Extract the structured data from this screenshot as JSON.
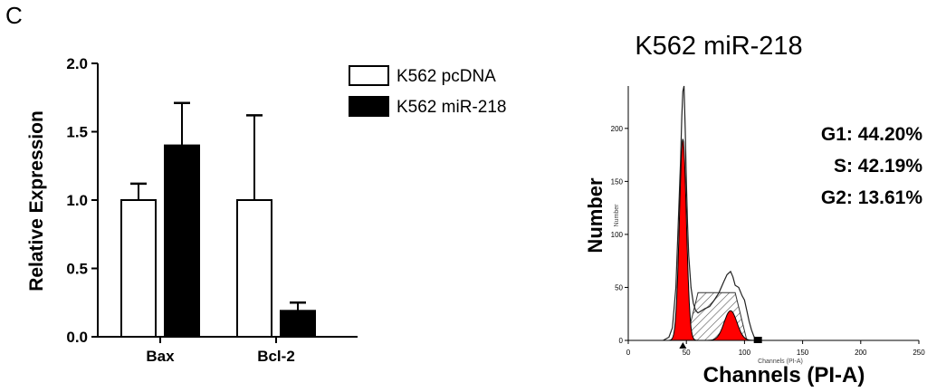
{
  "panel_label": "C",
  "colors": {
    "black": "#000000",
    "white": "#ffffff",
    "red": "#ff0000",
    "hatch": "#555555"
  },
  "chart_data": [
    {
      "type": "bar",
      "title": "",
      "xlabel": "",
      "ylabel": "Relative Expression",
      "ylim": [
        0,
        2.0
      ],
      "yticks": [
        "0.0",
        "0.5",
        "1.0",
        "1.5",
        "2.0"
      ],
      "grid": false,
      "legend_position": "top-right",
      "categories": [
        "Bax",
        "Bcl-2"
      ],
      "series": [
        {
          "name": "K562 pcDNA",
          "fill": "#ffffff",
          "values": [
            1.0,
            1.0
          ],
          "errors": [
            0.12,
            0.62
          ]
        },
        {
          "name": "K562 miR-218",
          "fill": "#000000",
          "values": [
            1.4,
            0.19
          ],
          "errors": [
            0.31,
            0.06
          ]
        }
      ]
    },
    {
      "type": "area",
      "title": "K562 miR-218",
      "xlabel": "Channels (PI-A)",
      "xlabel_small": "Channels (PI-A)",
      "ylabel": "Number",
      "ylabel_small": "Number",
      "xlim": [
        0,
        250
      ],
      "ylim": [
        0,
        240
      ],
      "xticks": [
        "0",
        "50",
        "100",
        "150",
        "200",
        "250"
      ],
      "yticks": [
        "0",
        "50",
        "100",
        "150",
        "200"
      ],
      "annotations": [
        "G1: 44.20%",
        "S: 42.19%",
        "G2: 13.61%"
      ],
      "histogram": {
        "x": [
          30,
          35,
          38,
          41,
          43,
          45,
          46,
          47,
          48,
          49,
          50,
          51,
          52,
          54,
          56,
          58,
          60,
          63,
          66,
          70,
          74,
          78,
          82,
          85,
          88,
          90,
          92,
          95,
          98,
          100,
          102,
          104,
          106,
          108,
          110
        ],
        "y": [
          0,
          3,
          12,
          50,
          110,
          170,
          210,
          235,
          240,
          200,
          150,
          110,
          80,
          50,
          35,
          28,
          26,
          28,
          30,
          32,
          38,
          45,
          55,
          62,
          65,
          60,
          52,
          50,
          42,
          38,
          28,
          18,
          10,
          4,
          0
        ]
      },
      "g1_peak": {
        "mean": 47,
        "sd": 3.0,
        "height": 190
      },
      "g2_peak": {
        "mean": 88,
        "sd": 5.5,
        "height": 28
      },
      "s_phase": {
        "from": 50,
        "to": 102,
        "level": 45
      }
    }
  ]
}
